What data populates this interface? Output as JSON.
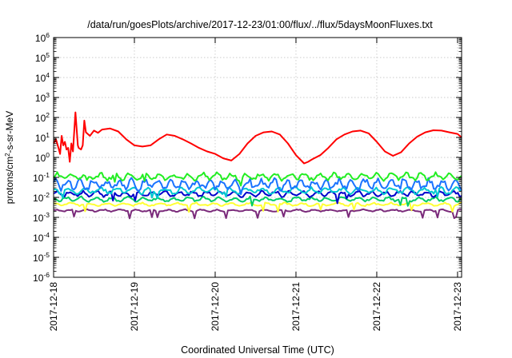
{
  "chart_data": {
    "type": "line",
    "title": "/data/run/goesPlots/archive/2017-12-23/01:00/flux/../flux/5daysMoonFluxes.txt",
    "xlabel": "Coordinated Universal Time (UTC)",
    "ylabel_parts": {
      "prefix": "protons/cm",
      "sup": "2",
      "suffix": "-s-sr-MeV"
    },
    "y_scale": "log",
    "ylim_exponents": [
      -6,
      6
    ],
    "y_tick_labels": [
      {
        "base": "10",
        "exp": "-6"
      },
      {
        "base": "10",
        "exp": "-5"
      },
      {
        "base": "10",
        "exp": "-4"
      },
      {
        "base": "10",
        "exp": "-3"
      },
      {
        "base": "10",
        "exp": "-2"
      },
      {
        "base": "10",
        "exp": "-1"
      },
      {
        "base": "10",
        "exp": "0"
      },
      {
        "base": "10",
        "exp": "1"
      },
      {
        "base": "10",
        "exp": "2"
      },
      {
        "base": "10",
        "exp": "3"
      },
      {
        "base": "10",
        "exp": "4"
      },
      {
        "base": "10",
        "exp": "5"
      },
      {
        "base": "10",
        "exp": "6"
      }
    ],
    "x_tick_labels": [
      "2017-12-18",
      "2017-12-19",
      "2017-12-20",
      "2017-12-21",
      "2017-12-22",
      "2017-12-23"
    ],
    "x_range_days": [
      0,
      5.05
    ],
    "grid": true,
    "legend": "none",
    "series": [
      {
        "color": "#ff0000",
        "x": [
          0,
          0.03,
          0.06,
          0.08,
          0.1,
          0.12,
          0.14,
          0.16,
          0.18,
          0.2,
          0.22,
          0.24,
          0.27,
          0.3,
          0.31,
          0.34,
          0.36,
          0.38,
          0.4,
          0.45,
          0.5,
          0.55,
          0.6,
          0.7,
          0.8,
          0.9,
          1.0,
          1.1,
          1.2,
          1.3,
          1.4,
          1.5,
          1.6,
          1.7,
          1.8,
          1.9,
          2.0,
          2.1,
          2.2,
          2.3,
          2.4,
          2.5,
          2.6,
          2.7,
          2.8,
          2.9,
          3.0,
          3.1,
          3.15,
          3.2,
          3.3,
          3.4,
          3.5,
          3.6,
          3.7,
          3.8,
          3.9,
          4.0,
          4.1,
          4.2,
          4.3,
          4.4,
          4.5,
          4.6,
          4.7,
          4.8,
          4.9,
          5.0,
          5.05
        ],
        "y": [
          5,
          8,
          3,
          1.5,
          12,
          4,
          6,
          2.5,
          3,
          0.6,
          5,
          2,
          180,
          4,
          3,
          2.5,
          4,
          70,
          18,
          12,
          22,
          17,
          25,
          28,
          20,
          8,
          4,
          3.5,
          4,
          8,
          14,
          12,
          8,
          5,
          3,
          2,
          1.5,
          0.9,
          0.7,
          1.5,
          5,
          12,
          18,
          20,
          14,
          5,
          1.3,
          0.5,
          0.6,
          0.8,
          1.3,
          3,
          8,
          14,
          20,
          22,
          16,
          6,
          2,
          1.2,
          1.8,
          5,
          11,
          18,
          23,
          22,
          18,
          15,
          10
        ]
      },
      {
        "color": "#22ee22",
        "base": 0.11,
        "amp": 0.23,
        "period": 0.18,
        "phase": 0.0
      },
      {
        "color": "#1a73ff",
        "base": 0.045,
        "amp": 0.35,
        "period": 0.16,
        "phase": 1.1
      },
      {
        "color": "#00c8d0",
        "base": 0.022,
        "amp": 0.2,
        "period": 0.2,
        "phase": 2.0
      },
      {
        "color": "#0000cc",
        "base": 0.015,
        "amp": 0.18,
        "period": 0.17,
        "phase": 0.5
      },
      {
        "color": "#00cc66",
        "base": 0.008,
        "amp": 0.15,
        "period": 0.19,
        "phase": 2.8
      },
      {
        "color": "#ffff33",
        "base": 0.0045,
        "amp": 0.1,
        "period": 0.22,
        "phase": 1.7
      },
      {
        "color": "#7a2a7a",
        "base": 0.0022,
        "amp": 0.07,
        "period": 0.2,
        "phase": 0.9
      }
    ]
  }
}
